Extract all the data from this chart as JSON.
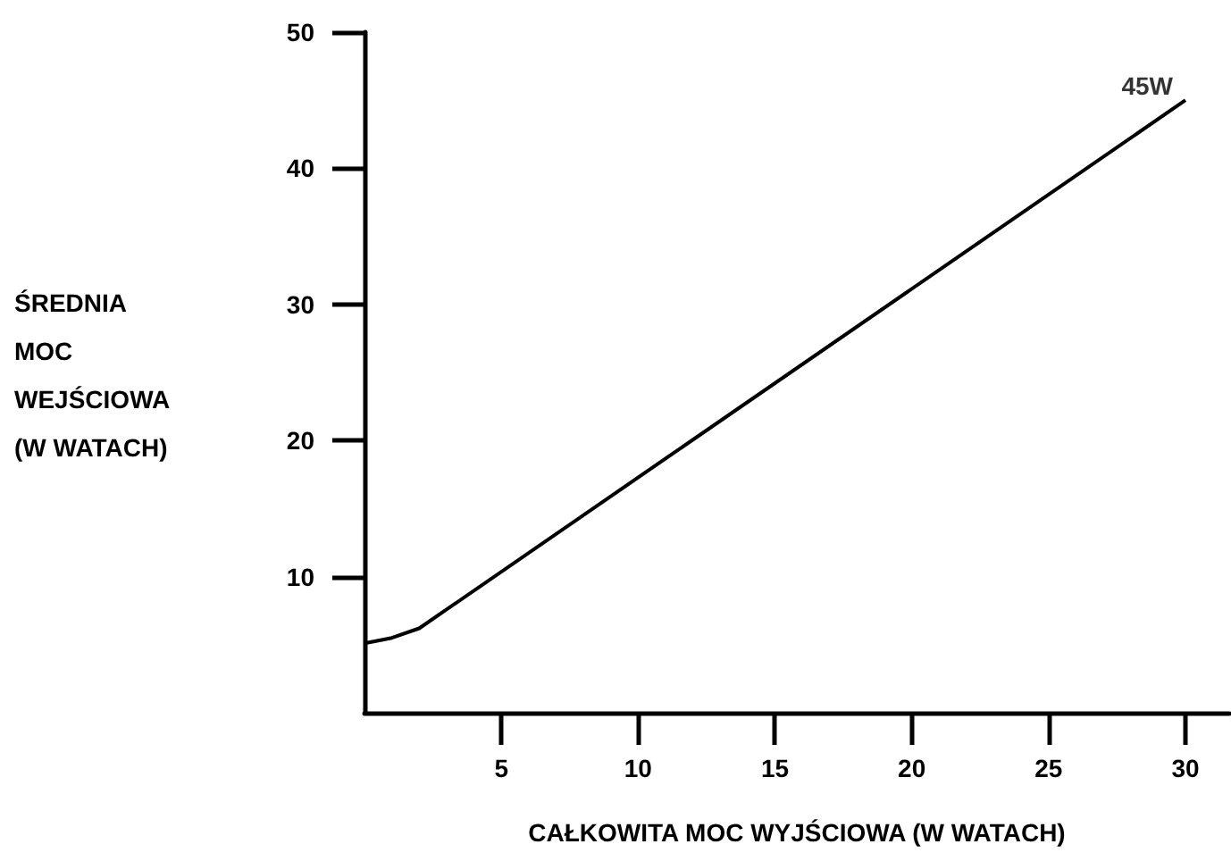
{
  "chart_data": {
    "type": "line",
    "xlabel": "CAŁKOWITA MOC WYJŚCIOWA (W WATACH)",
    "ylabel": "ŚREDNIA\nMOC\nWEJŚCIOWA\n(W WATACH)",
    "x": [
      0,
      1,
      2,
      30
    ],
    "series": [
      {
        "color": "#000000",
        "values": [
          5.1,
          5.5,
          6.2,
          45
        ]
      }
    ],
    "xlim": [
      0,
      31.6
    ],
    "xticks": [
      5,
      10,
      15,
      20,
      25,
      30
    ],
    "ylim": [
      0,
      50
    ],
    "yticks": [
      10,
      20,
      30,
      40,
      50
    ],
    "annotations": [
      {
        "text": "45W",
        "x": 30,
        "y": 45
      }
    ],
    "grid": false,
    "marker": "none",
    "line_style": "solid"
  }
}
